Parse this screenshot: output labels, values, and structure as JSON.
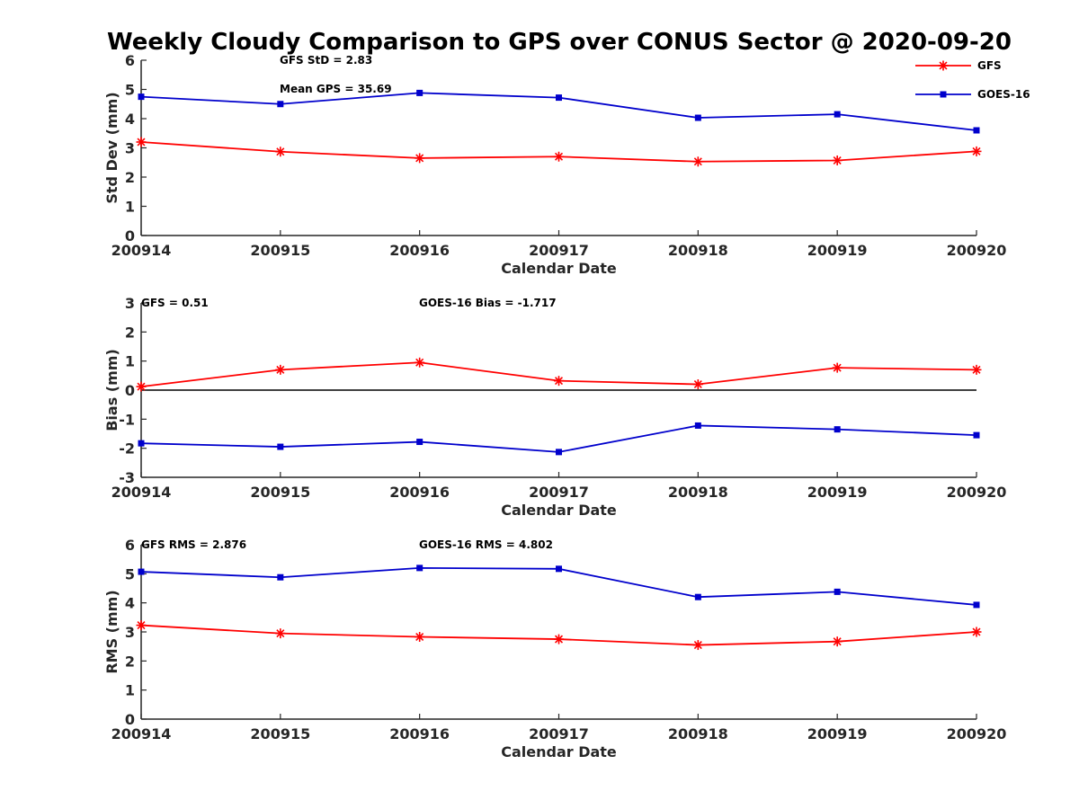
{
  "chart_data": {
    "title": "Weekly Cloudy Comparison to GPS over CONUS Sector @ 2020-09-20",
    "x_ticks": [
      "200914",
      "200915",
      "200916",
      "200917",
      "200918",
      "200919",
      "200920"
    ],
    "xlabel": "Calendar Date",
    "legend": [
      {
        "name": "GFS",
        "color": "#ff0000",
        "marker": "asterisk"
      },
      {
        "name": "GOES-16",
        "color": "#0000cc",
        "marker": "square"
      }
    ],
    "legend_placement": "top-right",
    "panels": [
      {
        "type": "line",
        "ylabel": "Std Dev (mm)",
        "ylim": [
          0,
          6
        ],
        "yticks": [
          "0",
          "1",
          "2",
          "3",
          "4",
          "5",
          "6"
        ],
        "series": [
          {
            "name": "GFS",
            "values": [
              3.2,
              2.87,
              2.65,
              2.7,
              2.53,
              2.57,
              2.88
            ]
          },
          {
            "name": "GOES-16",
            "values": [
              4.75,
              4.5,
              4.88,
              4.72,
              4.03,
              4.15,
              3.6
            ]
          }
        ],
        "annotations": [
          "GFS StD = 2.83",
          "Mean GPS = 35.69"
        ]
      },
      {
        "type": "line",
        "ylabel": "Bias (mm)",
        "ylim": [
          -3,
          3
        ],
        "yticks": [
          "-3",
          "-2",
          "-1",
          "0",
          "1",
          "2",
          "3"
        ],
        "zero_line": true,
        "series": [
          {
            "name": "GFS",
            "values": [
              0.12,
              0.7,
              0.95,
              0.32,
              0.2,
              0.77,
              0.7
            ]
          },
          {
            "name": "GOES-16",
            "values": [
              -1.83,
              -1.95,
              -1.78,
              -2.13,
              -1.22,
              -1.35,
              -1.55
            ]
          }
        ],
        "annotations": [
          "GFS = 0.51",
          "GOES-16 Bias  = -1.717"
        ]
      },
      {
        "type": "line",
        "ylabel": "RMS (mm)",
        "ylim": [
          0,
          6
        ],
        "yticks": [
          "0",
          "1",
          "2",
          "3",
          "4",
          "5",
          "6"
        ],
        "series": [
          {
            "name": "GFS",
            "values": [
              3.23,
              2.95,
              2.83,
              2.75,
              2.55,
              2.67,
              3.0
            ]
          },
          {
            "name": "GOES-16",
            "values": [
              5.07,
              4.88,
              5.2,
              5.17,
              4.2,
              4.38,
              3.93
            ]
          }
        ],
        "annotations": [
          "GFS RMS = 2.876",
          "GOES-16 RMS = 4.802"
        ]
      }
    ]
  }
}
